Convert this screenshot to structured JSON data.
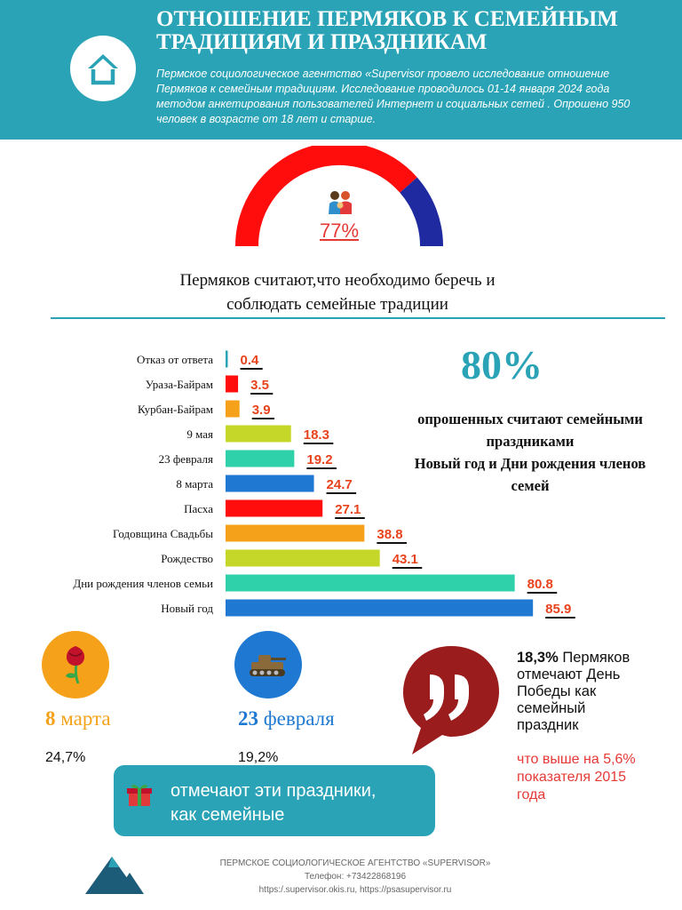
{
  "header": {
    "title_line1": "ОТНОШЕНИЕ ПЕРМЯКОВ К СЕМЕЙНЫМ",
    "title_line2": "ТРАДИЦИЯМ И ПРАЗДНИКАМ",
    "intro_line1": "Пермское социологическое агентство «Supervisor провело исследование отношение",
    "intro_line2": "Пермяков  к семейным традициям. Исследование проводилось 01-14 января 2024 года",
    "intro_line3": "методом анкетирования пользователей Интернет и социальных сетей . Опрошено 950",
    "intro_line4": "человек в возрасте от 18 лет и старше."
  },
  "gauge": {
    "value": 0.77,
    "value_label": "77%",
    "colors": {
      "main": "#ff0d0d",
      "rest": "#1f2aa0"
    },
    "icon": "family-icon"
  },
  "caption": {
    "line1": "Пермяков считают,что необходимо беречь и",
    "line2": "соблюдать семейные традиции"
  },
  "chart_data": {
    "type": "bar",
    "orientation": "horizontal",
    "categories": [
      "Отказ от ответа",
      "Ураза-Байрам",
      "Курбан-Байрам",
      "9 мая",
      "23 февраля",
      "8 марта",
      "Пасха",
      "Годовщина Свадьбы",
      "Рождество",
      "Дни рождения членов семьи",
      "Новый год"
    ],
    "values": [
      0.4,
      3.5,
      3.9,
      18.3,
      19.2,
      24.7,
      27.1,
      38.8,
      43.1,
      80.8,
      85.9
    ],
    "value_labels": [
      "0.4",
      "3.5",
      "3.9",
      "18.3",
      "19.2",
      "24.7",
      "27.1",
      "38.8",
      "43.1",
      "80.8",
      "85.9"
    ],
    "colors": [
      "#2ba3b6",
      "#ff0d0d",
      "#f5a21a",
      "#c5d82a",
      "#2ed1a9",
      "#1f78d1",
      "#ff0d0d",
      "#f5a21a",
      "#c5d82a",
      "#2ed1a9",
      "#1f78d1"
    ],
    "label_color": "#e8431c",
    "title": "",
    "xlabel": "",
    "ylabel": "",
    "xlim": [
      0,
      100
    ],
    "grid": false,
    "legend": "none"
  },
  "side_stat": {
    "value": "80%",
    "line1": "опрошенных считают семейными",
    "line2": "праздниками",
    "line3": "Новый год и Дни рождения членов",
    "line4": "семей"
  },
  "holidays": {
    "march": {
      "icon": "rose-icon",
      "number": "8",
      "word": "марта",
      "value": "24,7%",
      "color": "#f5a21a"
    },
    "feb": {
      "icon": "tank-icon",
      "number": "23",
      "word": "февраля",
      "value": "19,2%",
      "color": "#1f78d1"
    }
  },
  "note_box": {
    "icon": "gift-icon",
    "line1": "отмечают эти праздники,",
    "line2": "как семейные"
  },
  "quote": {
    "icon": "quote-bubble-icon",
    "bubble_color": "#9b1c1c",
    "line1_value": "18,3%",
    "line1_rest": " Пермяков",
    "line2": "отмечают День",
    "line3": "Победы как",
    "line4": "семейный",
    "line5": "праздник",
    "note_line1_a": "что выше на ",
    "note_line1_b": "5,6%",
    "note_line2_a": "показателя ",
    "note_line2_b": "2015",
    "note_line3": "года"
  },
  "footer": {
    "line1": "ПЕРМСКОЕ СОЦИОЛОГИЧЕСКОЕ АГЕНТСТВО «SUPERVISOR»",
    "line2": "Телефон: +73422868196",
    "line3": "https:/.supervisor.okis.ru, https://psasupervisor.ru",
    "logo_icon": "mountain-logo-icon"
  }
}
